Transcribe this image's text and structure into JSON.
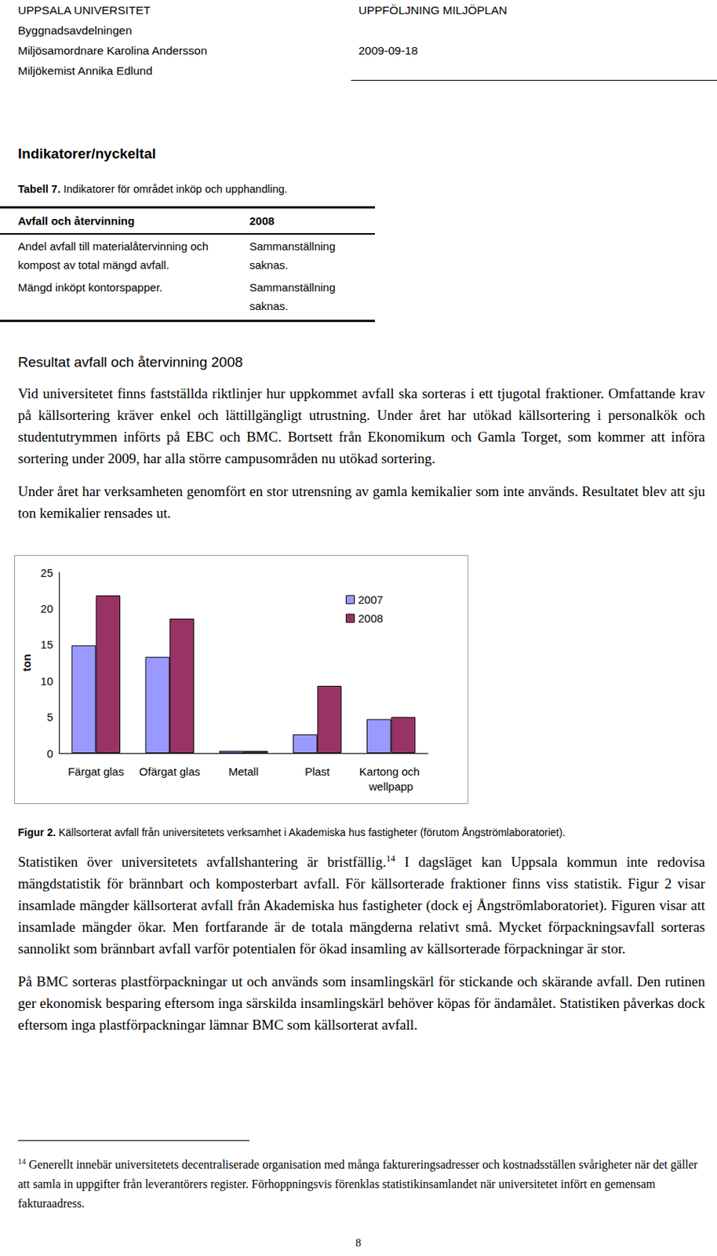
{
  "header": {
    "left": [
      "UPPSALA UNIVERSITET",
      "Byggnadsavdelningen",
      "Miljösamordnare Karolina Andersson",
      "Miljökemist Annika Edlund"
    ],
    "right": [
      "UPPFÖLJNING MILJÖPLAN",
      "",
      "2009-09-18",
      ""
    ]
  },
  "section_heading": "Indikatorer/nyckeltal",
  "table_caption": {
    "label": "Tabell 7.",
    "text": "Indikatorer för området inköp och upphandling."
  },
  "table": {
    "header": [
      "Avfall och återvinning",
      "2008"
    ],
    "rows": [
      [
        "Andel avfall till materialåtervinning och kompost av total mängd avfall.",
        "Sammanställning saknas."
      ],
      [
        "Mängd inköpt kontorspapper.",
        "Sammanställning saknas."
      ]
    ]
  },
  "results_heading": "Resultat avfall och återvinning 2008",
  "paragraphs_before_figure": [
    [
      {
        "text": "Vid universitetet finns fastställda riktlinjer hur uppkommet avfall ska sorteras i ett tjugotal fraktioner. Omfattande krav på källsortering kräver enkel och lättillgängligt utrustning. Under året har utökad källsortering i personalkök och studentutrymmen införts på EBC och BMC. Bortsett från Ekonomikum och Gamla Torget, som kommer att införa sortering under 2009, har alla större campusområden nu utökad sortering."
      }
    ],
    [
      {
        "text": "Under året har verksamheten genomfört en stor utrensning av gamla kemikalier som inte används. Resultatet blev att sju ton kemikalier rensades ut."
      }
    ]
  ],
  "chart_data": {
    "type": "bar",
    "categories": [
      "Färgat glas",
      "Ofärgat glas",
      "Metall",
      "Plast",
      "Kartong och wellpapp"
    ],
    "series": [
      {
        "name": "2007",
        "color": "#9999ff",
        "values": [
          14.9,
          13.3,
          0.3,
          2.6,
          4.7
        ]
      },
      {
        "name": "2008",
        "color": "#993366",
        "values": [
          21.8,
          18.6,
          0.3,
          9.3,
          5.0
        ]
      }
    ],
    "y_label": "ton",
    "ylim": [
      0,
      25
    ],
    "yticks": [
      0,
      5,
      10,
      15,
      20,
      25
    ],
    "grid": false,
    "legend": "upper right"
  },
  "figure_caption": {
    "label": "Figur 2.",
    "text": "Källsorterat avfall från universitetets verksamhet i Akademiska hus fastigheter (förutom Ångströmlaboratoriet)."
  },
  "paragraphs_after_figure": [
    [
      {
        "text": "Statistiken över universitetets avfallshantering är bristfällig."
      },
      {
        "sup": "14"
      },
      {
        "text": " I dagsläget kan Uppsala kommun inte redovisa mängdstatistik för brännbart och komposterbart avfall. För källsorterade fraktioner finns viss statistik. Figur 2 visar insamlade mängder källsorterat avfall från Akademiska hus fastigheter (dock ej Ångströmlaboratoriet). Figuren visar att insamlade mängder ökar. Men fortfarande är de totala mängderna relativt små. Mycket förpackningsavfall sorteras sannolikt som brännbart avfall varför potentialen för ökad insamling av källsorterade förpackningar är stor."
      }
    ],
    [
      {
        "text": "På BMC sorteras plastförpackningar ut och används som insamlingskärl för stickande och skärande avfall. Den rutinen ger ekonomisk besparing eftersom inga särskilda insamlingskärl behöver köpas för ändamålet. Statistiken påverkas dock eftersom inga plastförpackningar lämnar BMC som källsorterat avfall."
      }
    ]
  ],
  "footnote": {
    "number": "14",
    "text": "Generellt innebär universitetets decentraliserade organisation med många faktureringsadresser och kostnadsställen svårigheter när det gäller att samla in uppgifter från leverantörers register. Förhoppningsvis förenklas statistikinsamlandet när universitetet infört en gemensam fakturaadress."
  },
  "page_number": "8"
}
